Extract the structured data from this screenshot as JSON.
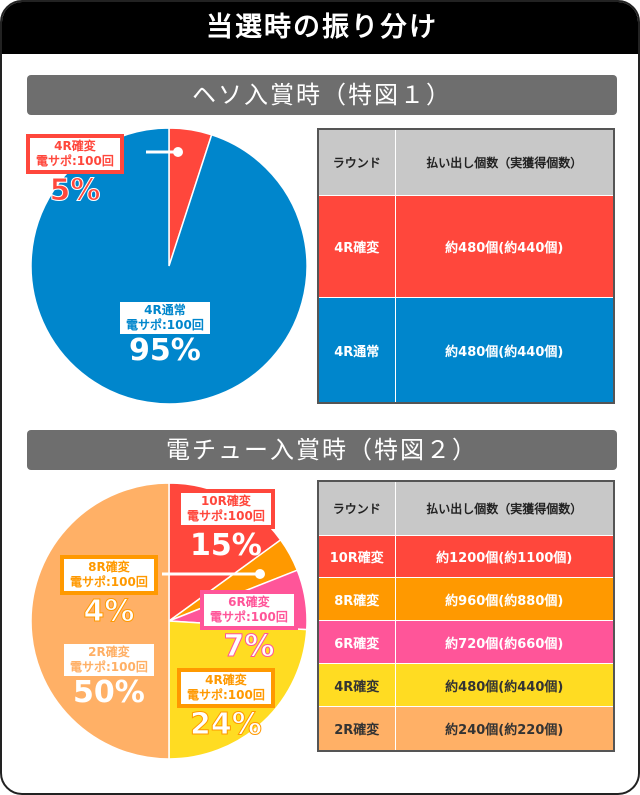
{
  "title": "当選時の振り分け",
  "sections": [
    {
      "title": "ヘソ入賞時（特図１）"
    },
    {
      "title": "電チュー入賞時（特図２）"
    }
  ],
  "chart_data": [
    {
      "type": "pie",
      "title": "ヘソ入賞時（特図１）",
      "categories": [
        "4R確変",
        "4R通常"
      ],
      "sublabels": [
        "電サポ:100回",
        "電サポ:100回"
      ],
      "values": [
        5,
        95
      ],
      "labels": [
        "5%",
        "95%"
      ],
      "colors": [
        "#ff473c",
        "#0086cc"
      ]
    },
    {
      "type": "pie",
      "title": "電チュー入賞時（特図２）",
      "categories": [
        "10R確変",
        "8R確変",
        "6R確変",
        "4R確変",
        "2R確変"
      ],
      "sublabels": [
        "電サポ:100回",
        "電サポ:100回",
        "電サポ:100回",
        "電サポ:100回",
        "電サポ:100回"
      ],
      "values": [
        15,
        4,
        7,
        24,
        50
      ],
      "labels": [
        "15%",
        "4%",
        "7%",
        "24%",
        "50%"
      ],
      "colors": [
        "#ff473c",
        "#ff9900",
        "#ff5599",
        "#ffdc22",
        "#ffb066"
      ]
    }
  ],
  "tables": [
    {
      "headers": [
        "ラウンド",
        "払い出し個数（実獲得個数）"
      ],
      "rows": [
        [
          "4R確変",
          "約480個(約440個)"
        ],
        [
          "4R通常",
          "約480個(約440個)"
        ]
      ]
    },
    {
      "headers": [
        "ラウンド",
        "払い出し個数（実獲得個数）"
      ],
      "rows": [
        [
          "10R確変",
          "約1200個(約1100個)"
        ],
        [
          "8R確変",
          "約960個(約880個)"
        ],
        [
          "6R確変",
          "約720個(約660個)"
        ],
        [
          "4R確変",
          "約480個(約440個)"
        ],
        [
          "2R確変",
          "約240個(約220個)"
        ]
      ]
    }
  ]
}
